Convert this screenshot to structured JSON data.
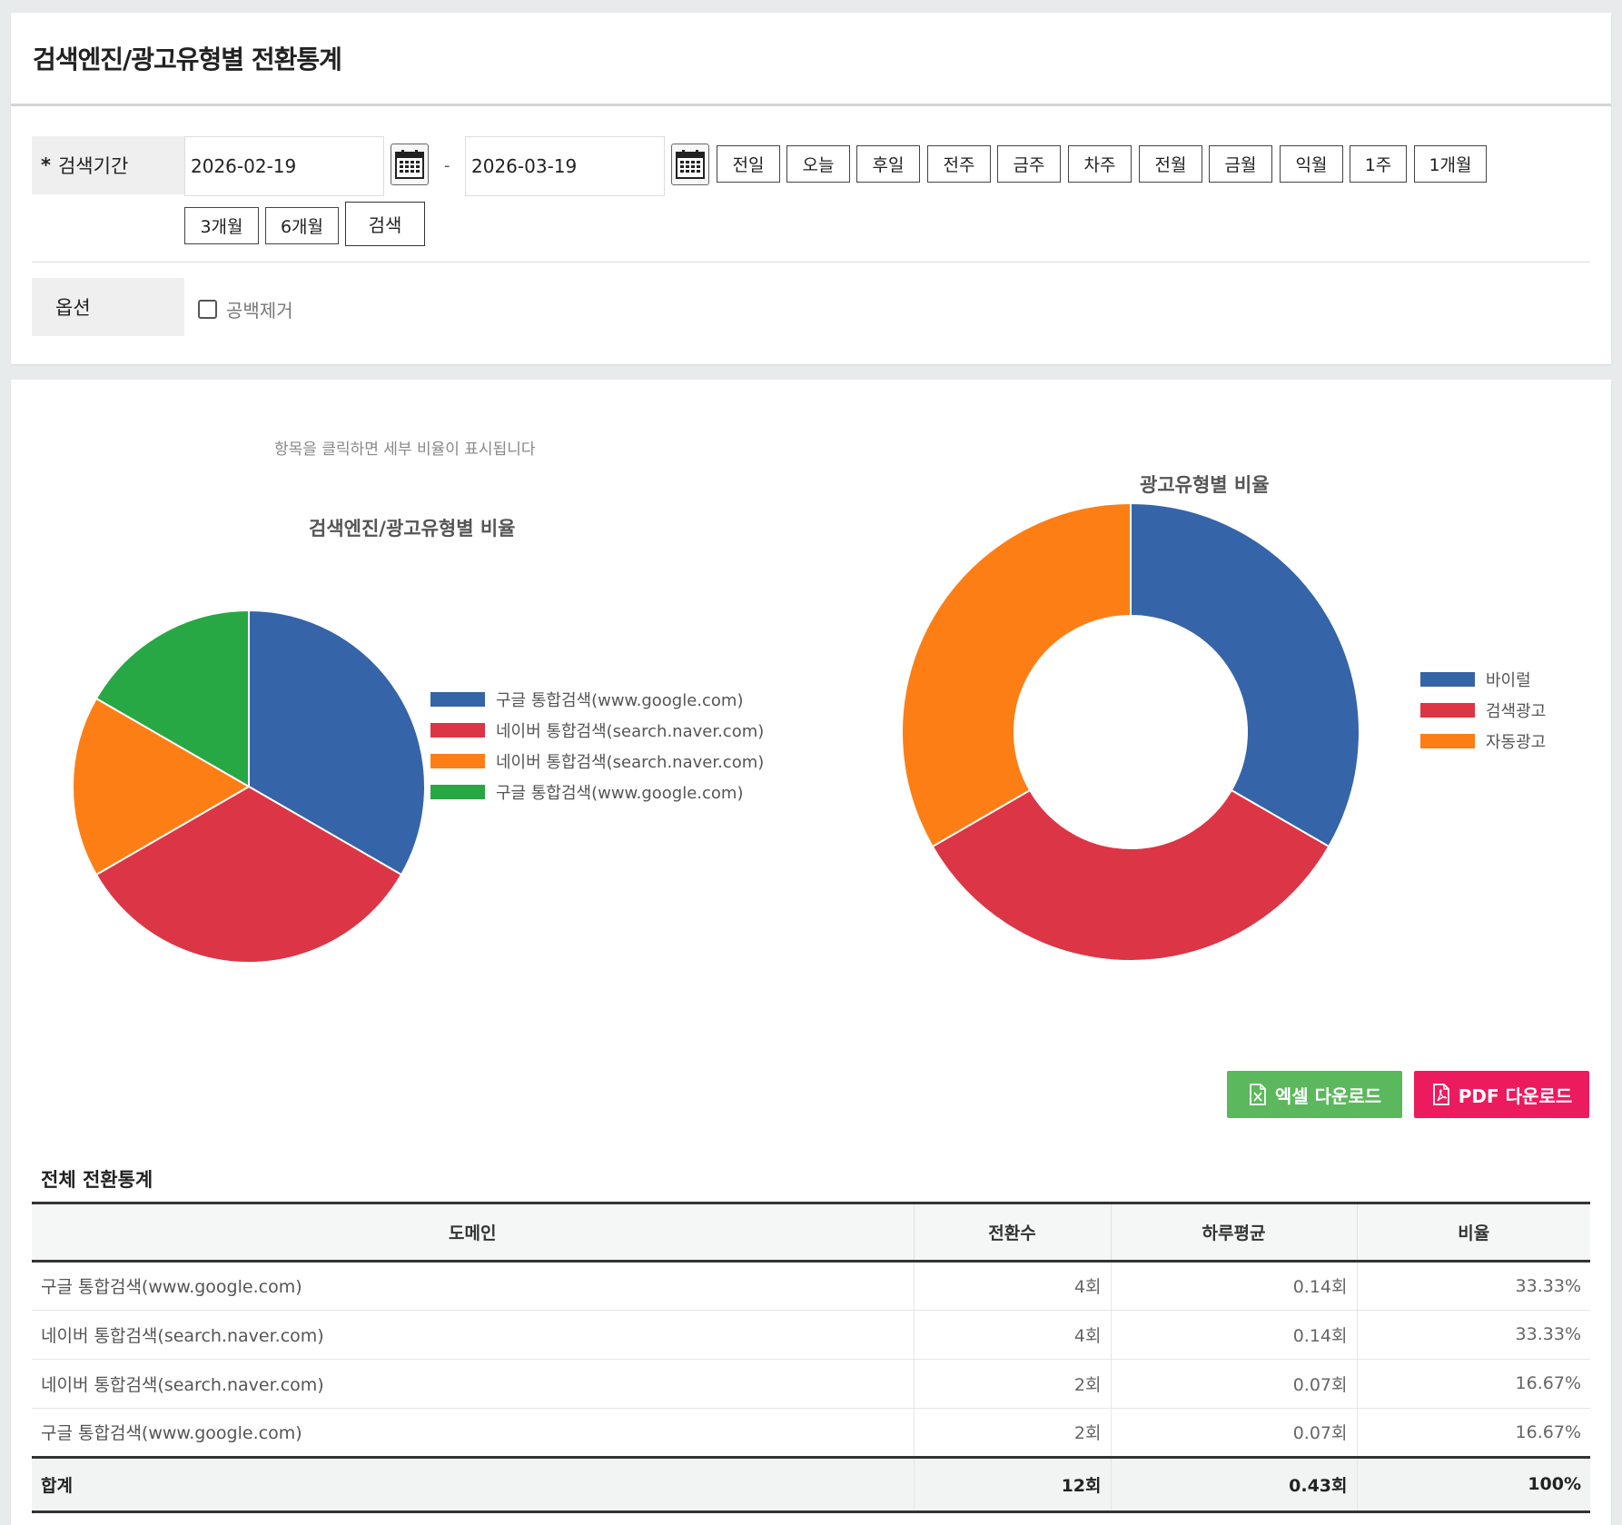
{
  "page": {
    "title": "검색엔진/광고유형별 전환통계"
  },
  "search": {
    "period_label": "검색기간",
    "required_mark": "*",
    "date_from": "2026-02-19",
    "date_to": "2026-03-19",
    "separator": "-",
    "quick_buttons": [
      "전일",
      "오늘",
      "후일",
      "전주",
      "금주",
      "차주",
      "전월",
      "금월",
      "익월",
      "1주",
      "1개월",
      "3개월",
      "6개월"
    ],
    "search_label": "검색",
    "option_label": "옵션",
    "trim_label": "공백제거",
    "trim_checked": false
  },
  "charts": {
    "hint": "항목을 클릭하면 세부 비율이 표시됩니다",
    "pie_title": "검색엔진/광고유형별 비율",
    "donut_title": "광고유형별 비율"
  },
  "colors": {
    "blue": "#3564a8",
    "red": "#dc3545",
    "orange": "#fd7e14",
    "green": "#28a745",
    "excel": "#5cb85c",
    "pdf": "#ec1b5e"
  },
  "chart_data": [
    {
      "type": "pie",
      "title": "검색엔진/광고유형별 비율",
      "categories": [
        "구글 통합검색(www.google.com)",
        "네이버 통합검색(search.naver.com)",
        "네이버 통합검색(search.naver.com)",
        "구글 통합검색(www.google.com)"
      ],
      "values": [
        4,
        4,
        2,
        2
      ],
      "colors": [
        "#3564a8",
        "#dc3545",
        "#fd7e14",
        "#28a745"
      ],
      "legend": "right"
    },
    {
      "type": "pie",
      "title": "광고유형별 비율",
      "categories": [
        "바이럴",
        "검색광고",
        "자동광고"
      ],
      "values": [
        1,
        1,
        1
      ],
      "colors": [
        "#3564a8",
        "#dc3545",
        "#fd7e14"
      ],
      "legend": "right"
    }
  ],
  "downloads": {
    "excel": "엑셀 다운로드",
    "pdf": "PDF 다운로드"
  },
  "table": {
    "title": "전체 전환통계",
    "headers": [
      "도메인",
      "전환수",
      "하루평균",
      "비율"
    ],
    "rows": [
      [
        "구글 통합검색(www.google.com)",
        "4회",
        "0.14회",
        "33.33%"
      ],
      [
        "네이버 통합검색(search.naver.com)",
        "4회",
        "0.14회",
        "33.33%"
      ],
      [
        "네이버 통합검색(search.naver.com)",
        "2회",
        "0.07회",
        "16.67%"
      ],
      [
        "구글 통합검색(www.google.com)",
        "2회",
        "0.07회",
        "16.67%"
      ]
    ],
    "total": [
      "합계",
      "12회",
      "0.43회",
      "100%"
    ]
  }
}
